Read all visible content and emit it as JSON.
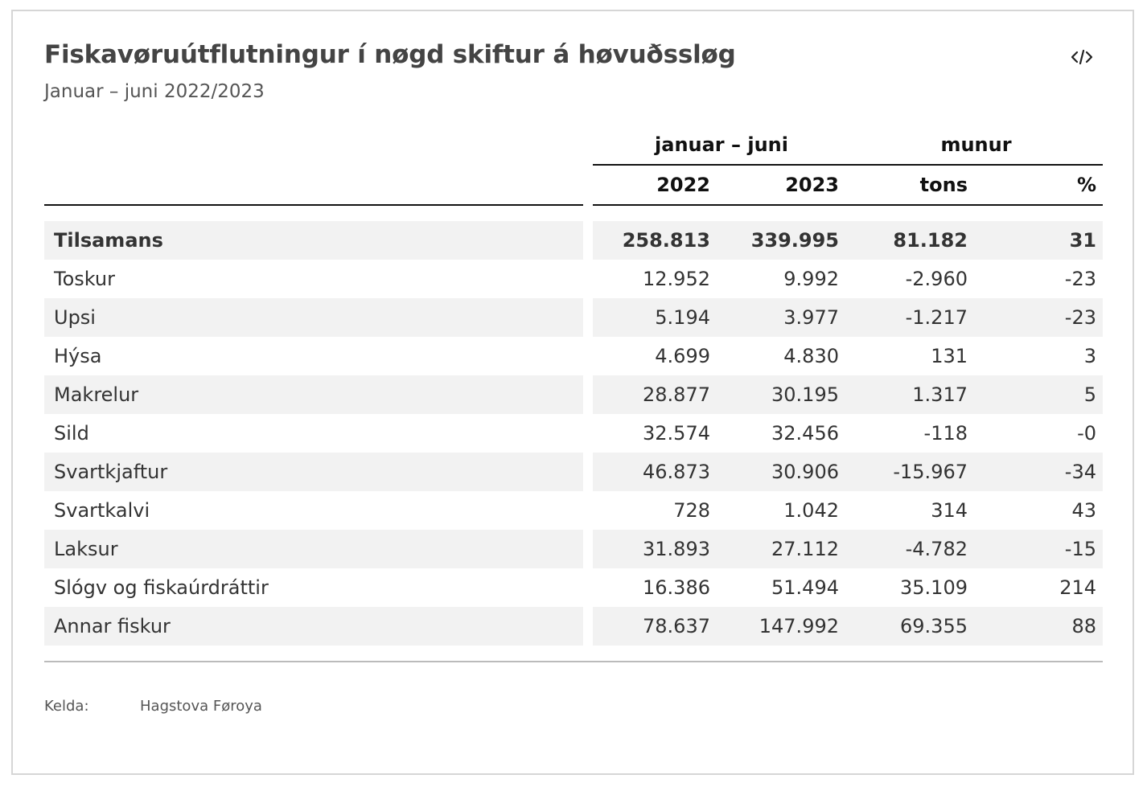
{
  "title": "Fiskavøruútflutningur í nøgd skiftur á høvuðssløg",
  "subtitle": "Januar – juni 2022/2023",
  "embed_icon": "code-icon",
  "chart_data": {
    "type": "table",
    "group_headers": [
      "januar – juni",
      "munur"
    ],
    "columns": [
      "2022",
      "2023",
      "tons",
      "%"
    ],
    "rows": [
      {
        "label": "Tilsamans",
        "values": [
          "258.813",
          "339.995",
          "81.182",
          "31"
        ],
        "bold": true
      },
      {
        "label": "Toskur",
        "values": [
          "12.952",
          "9.992",
          "-2.960",
          "-23"
        ]
      },
      {
        "label": "Upsi",
        "values": [
          "5.194",
          "3.977",
          "-1.217",
          "-23"
        ]
      },
      {
        "label": "Hýsa",
        "values": [
          "4.699",
          "4.830",
          "131",
          "3"
        ]
      },
      {
        "label": "Makrelur",
        "values": [
          "28.877",
          "30.195",
          "1.317",
          "5"
        ]
      },
      {
        "label": "Sild",
        "values": [
          "32.574",
          "32.456",
          "-118",
          "-0"
        ]
      },
      {
        "label": "Svartkjaftur",
        "values": [
          "46.873",
          "30.906",
          "-15.967",
          "-34"
        ]
      },
      {
        "label": "Svartkalvi",
        "values": [
          "728",
          "1.042",
          "314",
          "43"
        ]
      },
      {
        "label": "Laksur",
        "values": [
          "31.893",
          "27.112",
          "-4.782",
          "-15"
        ]
      },
      {
        "label": "Slógv og fiskaúrdráttir",
        "values": [
          "16.386",
          "51.494",
          "35.109",
          "214"
        ]
      },
      {
        "label": "Annar fiskur",
        "values": [
          "78.637",
          "147.992",
          "69.355",
          "88"
        ]
      }
    ]
  },
  "source": {
    "label": "Kelda:",
    "value": "Hagstova Føroya"
  }
}
